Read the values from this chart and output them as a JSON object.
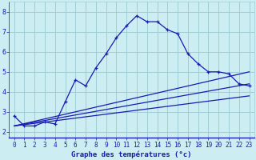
{
  "xlabel": "Graphe des températures (°c)",
  "bg_color": "#cceef2",
  "line_color": "#1a1ab4",
  "grid_color": "#a0ccd4",
  "x_ticks": [
    0,
    1,
    2,
    3,
    4,
    5,
    6,
    7,
    8,
    9,
    10,
    11,
    12,
    13,
    14,
    15,
    16,
    17,
    18,
    19,
    20,
    21,
    22,
    23
  ],
  "y_ticks": [
    2,
    3,
    4,
    5,
    6,
    7,
    8
  ],
  "ylim": [
    1.7,
    8.5
  ],
  "xlim": [
    -0.5,
    23.5
  ],
  "main_line": {
    "x": [
      0,
      1,
      2,
      3,
      4,
      5,
      6,
      7,
      8,
      9,
      10,
      11,
      12,
      13,
      14,
      15,
      16,
      17,
      18,
      19,
      20,
      21,
      22,
      23
    ],
    "y": [
      2.8,
      2.3,
      2.3,
      2.5,
      2.4,
      3.5,
      4.6,
      4.3,
      5.2,
      5.9,
      6.7,
      7.3,
      7.8,
      7.5,
      7.5,
      7.1,
      6.9,
      5.9,
      5.4,
      5.0,
      5.0,
      4.9,
      4.4,
      4.3
    ]
  },
  "line2": {
    "x": [
      0,
      23
    ],
    "y": [
      2.3,
      5.0
    ]
  },
  "line3": {
    "x": [
      0,
      23
    ],
    "y": [
      2.3,
      3.8
    ]
  },
  "line4": {
    "x": [
      0,
      23
    ],
    "y": [
      2.3,
      4.4
    ]
  },
  "tick_fontsize": 5.5,
  "xlabel_fontsize": 6.5
}
